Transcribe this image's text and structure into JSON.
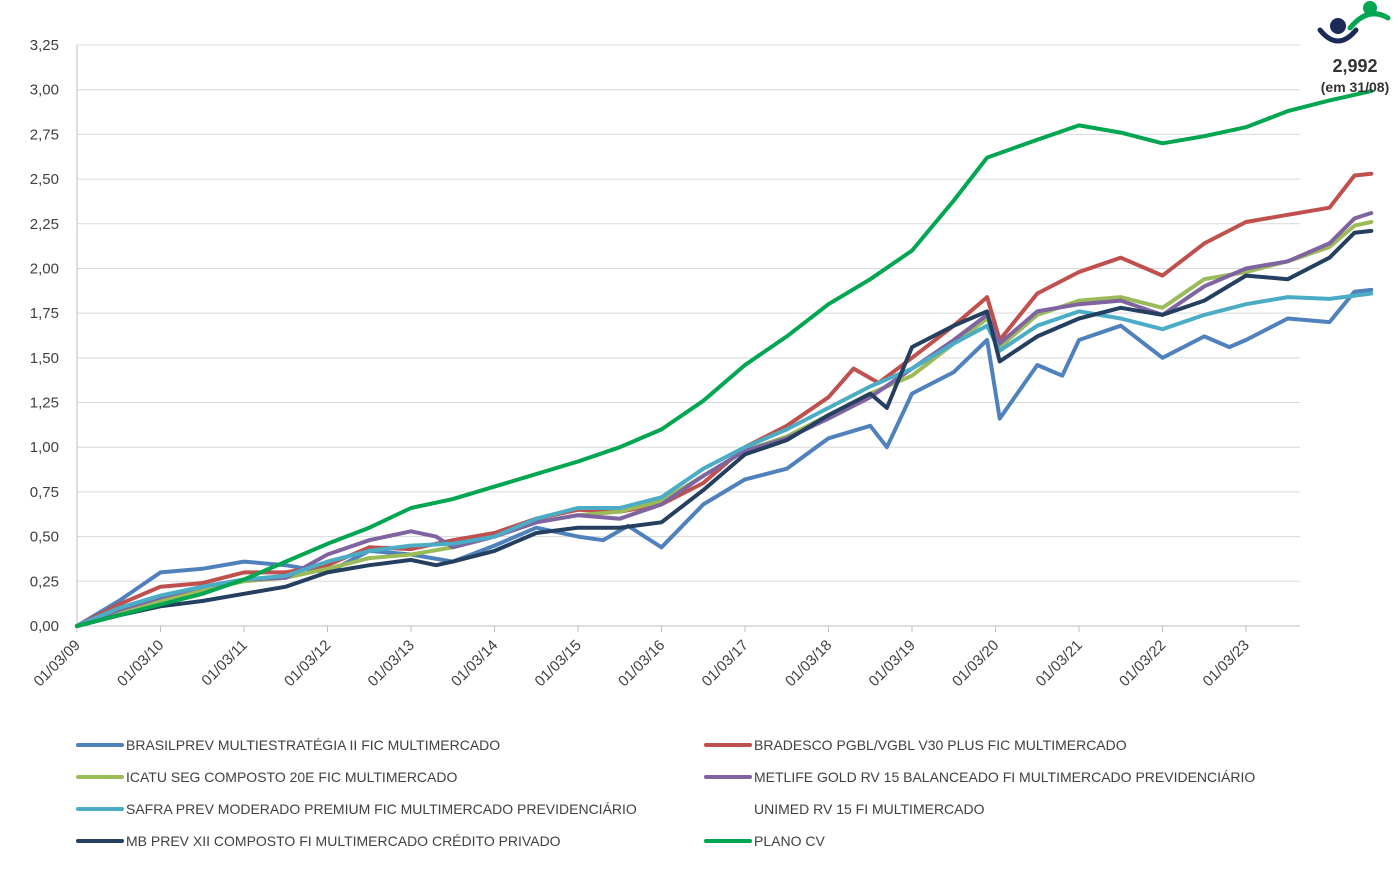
{
  "chart_data": {
    "type": "line",
    "title": "",
    "xlabel": "",
    "ylabel": "",
    "ylim": [
      0,
      3.25
    ],
    "y_ticks": [
      "0,00",
      "0,25",
      "0,50",
      "0,75",
      "1,00",
      "1,25",
      "1,50",
      "1,75",
      "2,00",
      "2,25",
      "2,50",
      "2,75",
      "3,00",
      "3,25"
    ],
    "x_ticks": [
      "01/03/09",
      "01/03/10",
      "01/03/11",
      "01/03/12",
      "01/03/13",
      "01/03/14",
      "01/03/15",
      "01/03/16",
      "01/03/17",
      "01/03/18",
      "01/03/19",
      "01/03/20",
      "01/03/21",
      "01/03/22",
      "01/03/23"
    ],
    "x_end": "31/08/23",
    "grid": "horizontal",
    "legend_placement": "bottom",
    "annotation": {
      "value": "2,992",
      "note": "(em 31/08)"
    },
    "series": [
      {
        "name": "BRASILPREV MULTIESTRATÉGIA II FIC MULTIMERCADO",
        "color": "#4f81bd",
        "points": [
          [
            0,
            0
          ],
          [
            0.5,
            0.14
          ],
          [
            1,
            0.3
          ],
          [
            1.5,
            0.32
          ],
          [
            2,
            0.36
          ],
          [
            2.5,
            0.34
          ],
          [
            3,
            0.3
          ],
          [
            3.5,
            0.42
          ],
          [
            4,
            0.4
          ],
          [
            4.5,
            0.36
          ],
          [
            5,
            0.45
          ],
          [
            5.5,
            0.55
          ],
          [
            6,
            0.5
          ],
          [
            6.3,
            0.48
          ],
          [
            6.6,
            0.56
          ],
          [
            7,
            0.44
          ],
          [
            7.5,
            0.68
          ],
          [
            8,
            0.82
          ],
          [
            8.5,
            0.88
          ],
          [
            9,
            1.05
          ],
          [
            9.5,
            1.12
          ],
          [
            9.7,
            1.0
          ],
          [
            10,
            1.3
          ],
          [
            10.5,
            1.42
          ],
          [
            10.9,
            1.6
          ],
          [
            11.05,
            1.16
          ],
          [
            11.5,
            1.46
          ],
          [
            11.8,
            1.4
          ],
          [
            12,
            1.6
          ],
          [
            12.5,
            1.68
          ],
          [
            13,
            1.5
          ],
          [
            13.5,
            1.62
          ],
          [
            13.8,
            1.56
          ],
          [
            14,
            1.6
          ],
          [
            14.5,
            1.72
          ],
          [
            15,
            1.7
          ],
          [
            15.3,
            1.87
          ],
          [
            15.5,
            1.88
          ]
        ]
      },
      {
        "name": "BRADESCO PGBL/VGBL V30 PLUS FIC MULTIMERCADO",
        "color": "#c0504d",
        "points": [
          [
            0,
            0
          ],
          [
            0.5,
            0.12
          ],
          [
            1,
            0.22
          ],
          [
            1.5,
            0.24
          ],
          [
            2,
            0.3
          ],
          [
            2.5,
            0.3
          ],
          [
            3,
            0.34
          ],
          [
            3.5,
            0.44
          ],
          [
            4,
            0.43
          ],
          [
            4.5,
            0.48
          ],
          [
            5,
            0.52
          ],
          [
            5.5,
            0.6
          ],
          [
            6,
            0.65
          ],
          [
            6.5,
            0.64
          ],
          [
            7,
            0.68
          ],
          [
            7.5,
            0.8
          ],
          [
            8,
            1.0
          ],
          [
            8.5,
            1.12
          ],
          [
            9,
            1.28
          ],
          [
            9.3,
            1.44
          ],
          [
            9.6,
            1.36
          ],
          [
            10,
            1.5
          ],
          [
            10.5,
            1.68
          ],
          [
            10.9,
            1.84
          ],
          [
            11.05,
            1.6
          ],
          [
            11.5,
            1.86
          ],
          [
            12,
            1.98
          ],
          [
            12.5,
            2.06
          ],
          [
            13,
            1.96
          ],
          [
            13.5,
            2.14
          ],
          [
            14,
            2.26
          ],
          [
            14.5,
            2.3
          ],
          [
            15,
            2.34
          ],
          [
            15.3,
            2.52
          ],
          [
            15.5,
            2.53
          ]
        ]
      },
      {
        "name": "ICATU SEG COMPOSTO 20E FIC MULTIMERCADO",
        "color": "#9bbb59",
        "points": [
          [
            0,
            0
          ],
          [
            0.5,
            0.08
          ],
          [
            1,
            0.14
          ],
          [
            1.5,
            0.2
          ],
          [
            2,
            0.25
          ],
          [
            2.5,
            0.27
          ],
          [
            3,
            0.32
          ],
          [
            3.5,
            0.38
          ],
          [
            4,
            0.4
          ],
          [
            4.5,
            0.44
          ],
          [
            5,
            0.5
          ],
          [
            5.5,
            0.58
          ],
          [
            6,
            0.62
          ],
          [
            6.5,
            0.64
          ],
          [
            7,
            0.7
          ],
          [
            7.5,
            0.84
          ],
          [
            8,
            0.98
          ],
          [
            8.5,
            1.06
          ],
          [
            9,
            1.18
          ],
          [
            9.5,
            1.3
          ],
          [
            10,
            1.4
          ],
          [
            10.5,
            1.58
          ],
          [
            10.9,
            1.72
          ],
          [
            11.05,
            1.56
          ],
          [
            11.5,
            1.74
          ],
          [
            12,
            1.82
          ],
          [
            12.5,
            1.84
          ],
          [
            13,
            1.78
          ],
          [
            13.5,
            1.94
          ],
          [
            14,
            1.98
          ],
          [
            14.5,
            2.04
          ],
          [
            15,
            2.12
          ],
          [
            15.3,
            2.24
          ],
          [
            15.5,
            2.26
          ]
        ]
      },
      {
        "name": "METLIFE GOLD RV 15 BALANCEADO FI MULTIMERCADO PREVIDENCIÁRIO",
        "color": "#8064a2",
        "points": [
          [
            0,
            0
          ],
          [
            0.5,
            0.09
          ],
          [
            1,
            0.16
          ],
          [
            1.5,
            0.22
          ],
          [
            2,
            0.26
          ],
          [
            2.5,
            0.27
          ],
          [
            3,
            0.4
          ],
          [
            3.5,
            0.48
          ],
          [
            4,
            0.53
          ],
          [
            4.3,
            0.5
          ],
          [
            4.5,
            0.44
          ],
          [
            5,
            0.5
          ],
          [
            5.5,
            0.58
          ],
          [
            6,
            0.62
          ],
          [
            6.5,
            0.6
          ],
          [
            7,
            0.68
          ],
          [
            7.5,
            0.84
          ],
          [
            8,
            0.98
          ],
          [
            8.5,
            1.05
          ],
          [
            9,
            1.16
          ],
          [
            9.5,
            1.28
          ],
          [
            10,
            1.44
          ],
          [
            10.5,
            1.6
          ],
          [
            10.9,
            1.74
          ],
          [
            11.05,
            1.58
          ],
          [
            11.5,
            1.76
          ],
          [
            12,
            1.8
          ],
          [
            12.5,
            1.82
          ],
          [
            13,
            1.74
          ],
          [
            13.5,
            1.9
          ],
          [
            14,
            2.0
          ],
          [
            14.5,
            2.04
          ],
          [
            15,
            2.14
          ],
          [
            15.3,
            2.28
          ],
          [
            15.5,
            2.31
          ]
        ]
      },
      {
        "name": "SAFRA PREV MODERADO PREMIUM FIC MULTIMERCADO PREVIDENCIÁRIO",
        "color": "#4bacc6",
        "points": [
          [
            0,
            0
          ],
          [
            0.5,
            0.1
          ],
          [
            1,
            0.17
          ],
          [
            1.5,
            0.22
          ],
          [
            2,
            0.26
          ],
          [
            2.5,
            0.28
          ],
          [
            3,
            0.36
          ],
          [
            3.5,
            0.42
          ],
          [
            4,
            0.45
          ],
          [
            4.5,
            0.46
          ],
          [
            5,
            0.5
          ],
          [
            5.5,
            0.6
          ],
          [
            6,
            0.66
          ],
          [
            6.5,
            0.66
          ],
          [
            7,
            0.72
          ],
          [
            7.5,
            0.88
          ],
          [
            8,
            1.0
          ],
          [
            8.5,
            1.1
          ],
          [
            9,
            1.22
          ],
          [
            9.5,
            1.34
          ],
          [
            10,
            1.44
          ],
          [
            10.5,
            1.58
          ],
          [
            10.9,
            1.68
          ],
          [
            11.05,
            1.54
          ],
          [
            11.5,
            1.68
          ],
          [
            12,
            1.76
          ],
          [
            12.5,
            1.72
          ],
          [
            13,
            1.66
          ],
          [
            13.5,
            1.74
          ],
          [
            14,
            1.8
          ],
          [
            14.5,
            1.84
          ],
          [
            15,
            1.83
          ],
          [
            15.5,
            1.86
          ]
        ]
      },
      {
        "name": "UNIMED RV 15 FI MULTIMERCADO",
        "color": "#ffffff",
        "points": []
      },
      {
        "name": "MB PREV XII COMPOSTO FI MULTIMERCADO CRÉDITO PRIVADO",
        "color": "#243f60",
        "points": [
          [
            0,
            0
          ],
          [
            0.5,
            0.06
          ],
          [
            1,
            0.11
          ],
          [
            1.5,
            0.14
          ],
          [
            2,
            0.18
          ],
          [
            2.5,
            0.22
          ],
          [
            3,
            0.3
          ],
          [
            3.5,
            0.34
          ],
          [
            4,
            0.37
          ],
          [
            4.3,
            0.34
          ],
          [
            4.5,
            0.36
          ],
          [
            5,
            0.42
          ],
          [
            5.5,
            0.52
          ],
          [
            6,
            0.55
          ],
          [
            6.5,
            0.55
          ],
          [
            7,
            0.58
          ],
          [
            7.5,
            0.76
          ],
          [
            8,
            0.96
          ],
          [
            8.5,
            1.04
          ],
          [
            9,
            1.18
          ],
          [
            9.5,
            1.3
          ],
          [
            9.7,
            1.22
          ],
          [
            10,
            1.56
          ],
          [
            10.5,
            1.68
          ],
          [
            10.9,
            1.76
          ],
          [
            11.05,
            1.48
          ],
          [
            11.5,
            1.62
          ],
          [
            12,
            1.72
          ],
          [
            12.5,
            1.78
          ],
          [
            13,
            1.74
          ],
          [
            13.5,
            1.82
          ],
          [
            14,
            1.96
          ],
          [
            14.5,
            1.94
          ],
          [
            15,
            2.06
          ],
          [
            15.3,
            2.2
          ],
          [
            15.5,
            2.21
          ]
        ]
      },
      {
        "name": "PLANO CV",
        "color": "#00a650",
        "points": [
          [
            0,
            0
          ],
          [
            0.5,
            0.06
          ],
          [
            1,
            0.12
          ],
          [
            1.5,
            0.18
          ],
          [
            2,
            0.26
          ],
          [
            2.5,
            0.36
          ],
          [
            3,
            0.46
          ],
          [
            3.5,
            0.55
          ],
          [
            4,
            0.66
          ],
          [
            4.5,
            0.71
          ],
          [
            5,
            0.78
          ],
          [
            5.5,
            0.85
          ],
          [
            6,
            0.92
          ],
          [
            6.5,
            1.0
          ],
          [
            7,
            1.1
          ],
          [
            7.5,
            1.26
          ],
          [
            8,
            1.46
          ],
          [
            8.5,
            1.62
          ],
          [
            9,
            1.8
          ],
          [
            9.5,
            1.94
          ],
          [
            10,
            2.1
          ],
          [
            10.5,
            2.38
          ],
          [
            10.9,
            2.62
          ],
          [
            11.5,
            2.72
          ],
          [
            12,
            2.8
          ],
          [
            12.5,
            2.76
          ],
          [
            13,
            2.7
          ],
          [
            13.5,
            2.74
          ],
          [
            14,
            2.79
          ],
          [
            14.5,
            2.88
          ],
          [
            15,
            2.94
          ],
          [
            15.5,
            2.992
          ]
        ]
      }
    ]
  }
}
